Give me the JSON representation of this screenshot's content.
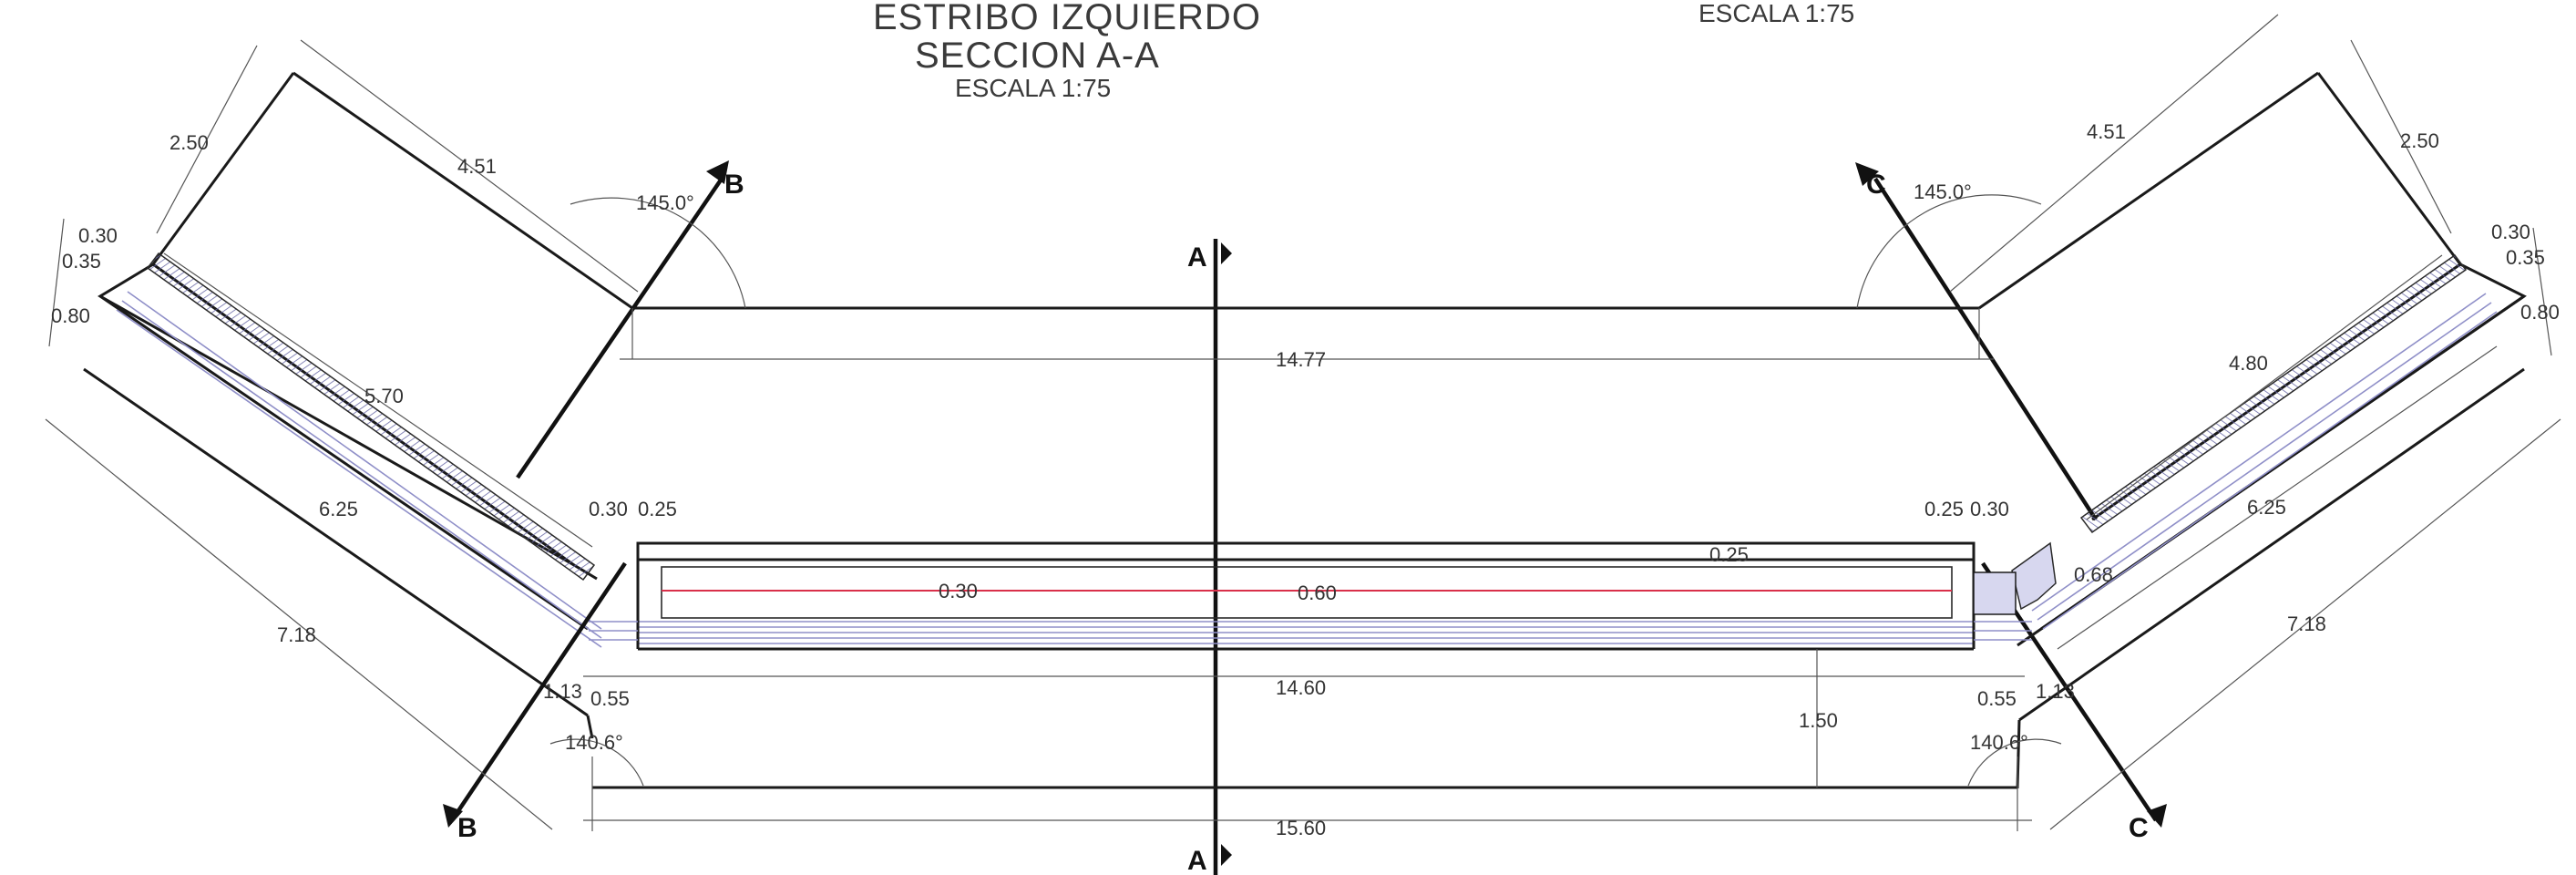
{
  "title": {
    "line1": "ESTRIBO IZQUIERDO",
    "line2": "SECCION A-A",
    "line3": "ESCALA 1:75",
    "right_scale": "ESCALA 1:75"
  },
  "section_marks": {
    "a_top": "A",
    "a_bottom": "A",
    "b_top": "B",
    "b_bottom": "B",
    "c_top": "C",
    "c_bottom": "C"
  },
  "dimensions": {
    "left_wing_width": "2.50",
    "left_wing_length": "4.51",
    "left_top_angle": "145.0°",
    "left_0_30": "0.30",
    "left_0_35": "0.35",
    "left_0_80": "0.80",
    "left_5_70": "5.70",
    "left_6_25": "6.25",
    "left_7_18": "7.18",
    "top_span": "14.77",
    "mid_0_30_left": "0.30",
    "mid_0_25_left": "0.25",
    "mid_0_25_right": "0.25",
    "mid_0_30_right": "0.30",
    "slab_0_25": "0.25",
    "slab_0_30": "0.30",
    "slab_0_60": "0.60",
    "left_1_13": "1.13",
    "left_0_55": "0.55",
    "bottom_14_60": "14.60",
    "right_0_55": "0.55",
    "right_1_13": "1.13",
    "height_1_50": "1.50",
    "left_bottom_angle": "140.6°",
    "right_bottom_angle": "140.6°",
    "bottom_15_60": "15.60",
    "right_top_angle": "145.0°",
    "right_wing_length": "4.51",
    "right_wing_width": "2.50",
    "right_0_30": "0.30",
    "right_0_35": "0.35",
    "right_0_80": "0.80",
    "right_4_80": "4.80",
    "right_0_68": "0.68",
    "right_6_25": "6.25",
    "right_7_18": "7.18"
  },
  "colors": {
    "line": "#1a1a1a",
    "hatch": "#8f8fc8",
    "fill": "#d7d7ef",
    "rebar": "#d9304a"
  }
}
